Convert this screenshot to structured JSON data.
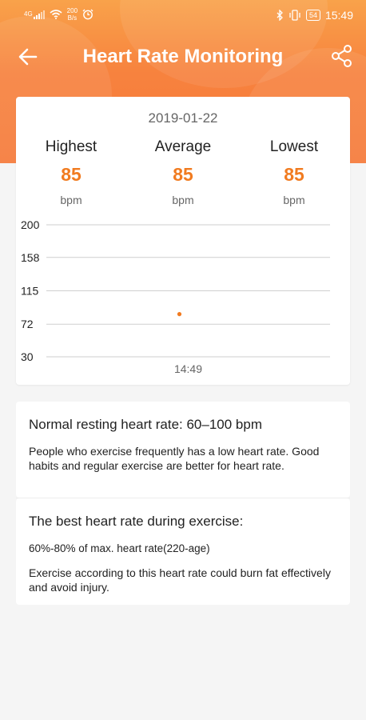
{
  "status_bar": {
    "signal_text": "4G",
    "net_speed_value": "200",
    "net_speed_unit": "B/s",
    "battery": "54",
    "time": "15:49"
  },
  "app_bar": {
    "title": "Heart Rate Monitoring"
  },
  "summary": {
    "date": "2019-01-22",
    "highest_label": "Highest",
    "highest_value": "85",
    "average_label": "Average",
    "average_value": "85",
    "lowest_label": "Lowest",
    "lowest_value": "85",
    "unit": "bpm"
  },
  "chart_data": {
    "type": "scatter",
    "y_ticks": [
      200,
      158,
      115,
      72,
      30
    ],
    "ylim": [
      30,
      200
    ],
    "x_tick_labels": [
      "14:49"
    ],
    "points": [
      {
        "x": "14:49",
        "y": 85
      }
    ],
    "grid": true,
    "point_color": "#f17b20"
  },
  "info": {
    "resting_title": "Normal resting heart rate: 60–100 bpm",
    "resting_text": "People who exercise frequently has a low heart rate. Good habits and regular exercise are better for heart rate.",
    "exercise_title": "The best heart rate during exercise:",
    "exercise_formula": "60%-80% of max. heart rate(220-age)",
    "exercise_text": "Exercise according to this heart rate could burn fat effectively and avoid injury."
  },
  "colors": {
    "accent": "#f17b20",
    "header_top": "#f9a24a",
    "header_bottom": "#f67a3a"
  },
  "icons": {
    "back": "arrow-left-icon",
    "share": "share-icon",
    "bluetooth": "bluetooth-icon",
    "vibrate": "vibrate-icon",
    "wifi": "wifi-icon",
    "alarm": "alarm-icon"
  }
}
